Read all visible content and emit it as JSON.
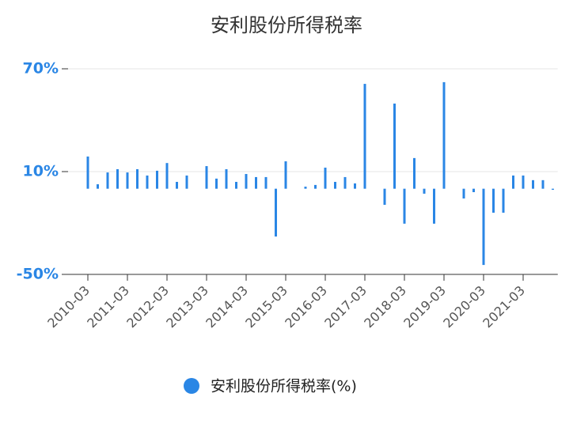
{
  "chart_data": {
    "type": "bar",
    "title": "安利股份所得税率",
    "categories": [
      "2010-03",
      null,
      null,
      null,
      "2011-03",
      null,
      null,
      null,
      "2012-03",
      null,
      null,
      null,
      "2013-03",
      null,
      null,
      null,
      "2014-03",
      null,
      null,
      null,
      "2015-03",
      null,
      null,
      null,
      "2016-03",
      null,
      null,
      null,
      "2017-03",
      null,
      null,
      null,
      "2018-03",
      null,
      null,
      null,
      "2019-03",
      null,
      null,
      null,
      "2020-03",
      null,
      null,
      null,
      "2021-03",
      null,
      null,
      null
    ],
    "series": [
      {
        "name": "安利股份所得税率(%)",
        "color": "#2a86e5",
        "values": [
          18.8,
          2.6,
          9.5,
          11.4,
          9.5,
          11.4,
          7.7,
          10.5,
          15,
          4,
          7.7,
          null,
          13.2,
          5.9,
          11.4,
          4,
          8.6,
          6.8,
          6.8,
          -27.9,
          16,
          null,
          1.2,
          2.2,
          12.3,
          4,
          6.8,
          3.1,
          61.2,
          null,
          -9.4,
          49.7,
          -20.4,
          17.9,
          -2.9,
          -20.4,
          62.2,
          null,
          -5.7,
          -2,
          -44.5,
          -14,
          -14,
          7.7,
          7.7,
          5,
          5,
          -0.6
        ]
      }
    ],
    "ylim": [
      -50,
      70
    ],
    "yticks": [
      {
        "value": -50,
        "label": "-50%"
      },
      {
        "value": 10,
        "label": "10%"
      },
      {
        "value": 70,
        "label": "70%"
      }
    ],
    "grid": true
  }
}
